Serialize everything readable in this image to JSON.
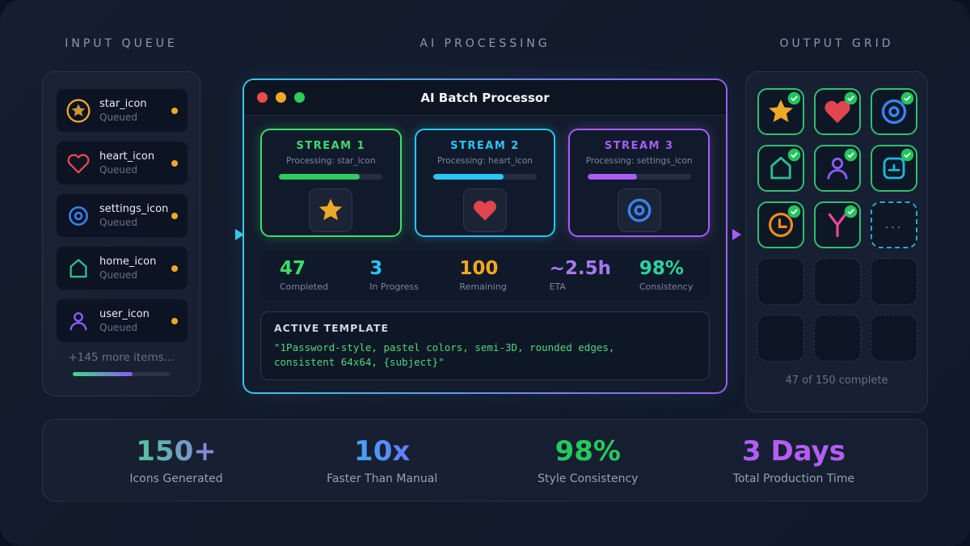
{
  "headers": {
    "input": "INPUT QUEUE",
    "processing": "AI PROCESSING",
    "output": "OUTPUT GRID"
  },
  "window": {
    "title": "AI Batch Processor"
  },
  "queue": {
    "items": [
      {
        "name": "star_icon",
        "status": "Queued",
        "icon": "circled-star-icon",
        "color": "#f0a830"
      },
      {
        "name": "heart_icon",
        "status": "Queued",
        "icon": "heart-icon",
        "color": "#ef4a55"
      },
      {
        "name": "settings_icon",
        "status": "Queued",
        "icon": "target-icon",
        "color": "#3b82f6"
      },
      {
        "name": "home_icon",
        "status": "Queued",
        "icon": "home-icon",
        "color": "#2dbd8a"
      },
      {
        "name": "user_icon",
        "status": "Queued",
        "icon": "user-icon",
        "color": "#8b5cf6"
      }
    ],
    "more_label": "+145 more items...",
    "progress_pct": 62
  },
  "streams": [
    {
      "title": "STREAM 1",
      "subtitle": "Processing: star_icon",
      "progress_pct": 78,
      "color": "#3ddc6a",
      "icon": "star-icon"
    },
    {
      "title": "STREAM 2",
      "subtitle": "Processing: heart_icon",
      "progress_pct": 68,
      "color": "#29c5f6",
      "icon": "heart-icon"
    },
    {
      "title": "STREAM 3",
      "subtitle": "Processing: settings_icon",
      "progress_pct": 48,
      "color": "#a85cf8",
      "icon": "target-icon"
    }
  ],
  "stats": [
    {
      "value": "47",
      "label": "Completed",
      "color": "#3ddc6a"
    },
    {
      "value": "3",
      "label": "In Progress",
      "color": "#29c5f6"
    },
    {
      "value": "100",
      "label": "Remaining",
      "color": "#f5a623"
    },
    {
      "value": "~2.5h",
      "label": "ETA",
      "color": "#a678f2"
    },
    {
      "value": "98%",
      "label": "Consistency",
      "color": "#2dd4a0"
    }
  ],
  "template": {
    "label": "ACTIVE TEMPLATE",
    "code": "\"1Password-style, pastel colors, semi-3D, rounded edges,\nconsistent 64x64, {subject}\""
  },
  "output": {
    "completed_icons": [
      "star-icon",
      "heart-icon",
      "target-icon",
      "home-icon",
      "user-icon",
      "window-icon",
      "clock-icon",
      "branch-icon"
    ],
    "ellipsis": "...",
    "empty_cells": 6,
    "footer": "47 of 150 complete"
  },
  "footer_stats": [
    {
      "value": "150+",
      "label": "Icons Generated"
    },
    {
      "value": "10x",
      "label": "Faster Than Manual"
    },
    {
      "value": "98%",
      "label": "Style Consistency"
    },
    {
      "value": "3 Days",
      "label": "Total Production Time"
    }
  ],
  "colors": {
    "background": "#121a2a",
    "window_border_left": "#35c8e8",
    "window_border_right": "#9a5cf0",
    "queued_dot": "#f5a623",
    "check_badge": "#22c55e",
    "traffic_lights": [
      "#ef4a4a",
      "#f5a623",
      "#2ecc5e"
    ]
  }
}
